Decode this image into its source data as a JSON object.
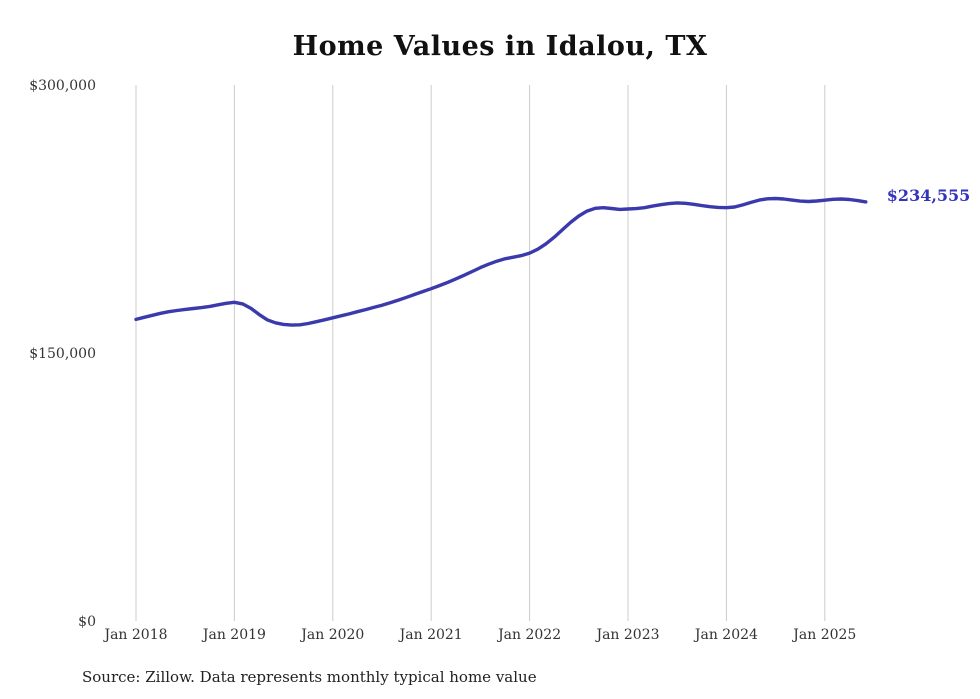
{
  "title": "Home Values in Idalou, TX",
  "source_note": "Source: Zillow. Data represents monthly typical home value",
  "end_label": "$234,555",
  "colors": {
    "line": "#3a3aad",
    "end_label": "#3333bd",
    "gridline": "#cccccc",
    "tick_text": "#333333",
    "title_text": "#111111"
  },
  "chart_data": {
    "type": "line",
    "title": "Home Values in Idalou, TX",
    "xlabel": "",
    "ylabel": "",
    "ylim": [
      0,
      300000
    ],
    "grid": "vertical-only",
    "legend": "none",
    "interval": "monthly",
    "y_tick_labels": [
      "$0",
      "$150,000",
      "$300,000"
    ],
    "y_tick_values": [
      0,
      150000,
      300000
    ],
    "x_tick_labels": [
      "Jan 2018",
      "Jan 2019",
      "Jan 2020",
      "Jan 2021",
      "Jan 2022",
      "Jan 2023",
      "Jan 2024",
      "Jan 2025"
    ],
    "last_value_label": "$234,555",
    "x": [
      "2018-01",
      "2018-02",
      "2018-03",
      "2018-04",
      "2018-05",
      "2018-06",
      "2018-07",
      "2018-08",
      "2018-09",
      "2018-10",
      "2018-11",
      "2018-12",
      "2019-01",
      "2019-02",
      "2019-03",
      "2019-04",
      "2019-05",
      "2019-06",
      "2019-07",
      "2019-08",
      "2019-09",
      "2019-10",
      "2019-11",
      "2019-12",
      "2020-01",
      "2020-02",
      "2020-03",
      "2020-04",
      "2020-05",
      "2020-06",
      "2020-07",
      "2020-08",
      "2020-09",
      "2020-10",
      "2020-11",
      "2020-12",
      "2021-01",
      "2021-02",
      "2021-03",
      "2021-04",
      "2021-05",
      "2021-06",
      "2021-07",
      "2021-08",
      "2021-09",
      "2021-10",
      "2021-11",
      "2021-12",
      "2022-01",
      "2022-02",
      "2022-03",
      "2022-04",
      "2022-05",
      "2022-06",
      "2022-07",
      "2022-08",
      "2022-09",
      "2022-10",
      "2022-11",
      "2022-12",
      "2023-01",
      "2023-02",
      "2023-03",
      "2023-04",
      "2023-05",
      "2023-06",
      "2023-07",
      "2023-08",
      "2023-09",
      "2023-10",
      "2023-11",
      "2023-12",
      "2024-01",
      "2024-02",
      "2024-03",
      "2024-04",
      "2024-05",
      "2024-06",
      "2024-07",
      "2024-08",
      "2024-09",
      "2024-10",
      "2024-11",
      "2024-12",
      "2025-01",
      "2025-02",
      "2025-03",
      "2025-04",
      "2025-05",
      "2025-06"
    ],
    "series": [
      {
        "name": "Typical home value",
        "values": [
          168800,
          170000,
          171100,
          172200,
          173100,
          173800,
          174400,
          174900,
          175400,
          176100,
          177000,
          177800,
          178400,
          177500,
          175000,
          171600,
          168600,
          166900,
          166000,
          165600,
          165800,
          166500,
          167500,
          168600,
          169700,
          170800,
          171900,
          173100,
          174300,
          175500,
          176700,
          178100,
          179600,
          181200,
          182800,
          184400,
          186000,
          187700,
          189500,
          191500,
          193500,
          195600,
          197800,
          199700,
          201400,
          202700,
          203600,
          204500,
          205900,
          208100,
          211100,
          214800,
          219000,
          223100,
          226700,
          229400,
          231000,
          231300,
          230900,
          230400,
          230600,
          230800,
          231300,
          232200,
          233000,
          233600,
          234000,
          233800,
          233200,
          232500,
          231900,
          231500,
          231300,
          231700,
          232900,
          234300,
          235600,
          236300,
          236500,
          236200,
          235600,
          235000,
          234800,
          235100,
          235500,
          236000,
          236200,
          235900,
          235300,
          234555
        ]
      }
    ]
  }
}
